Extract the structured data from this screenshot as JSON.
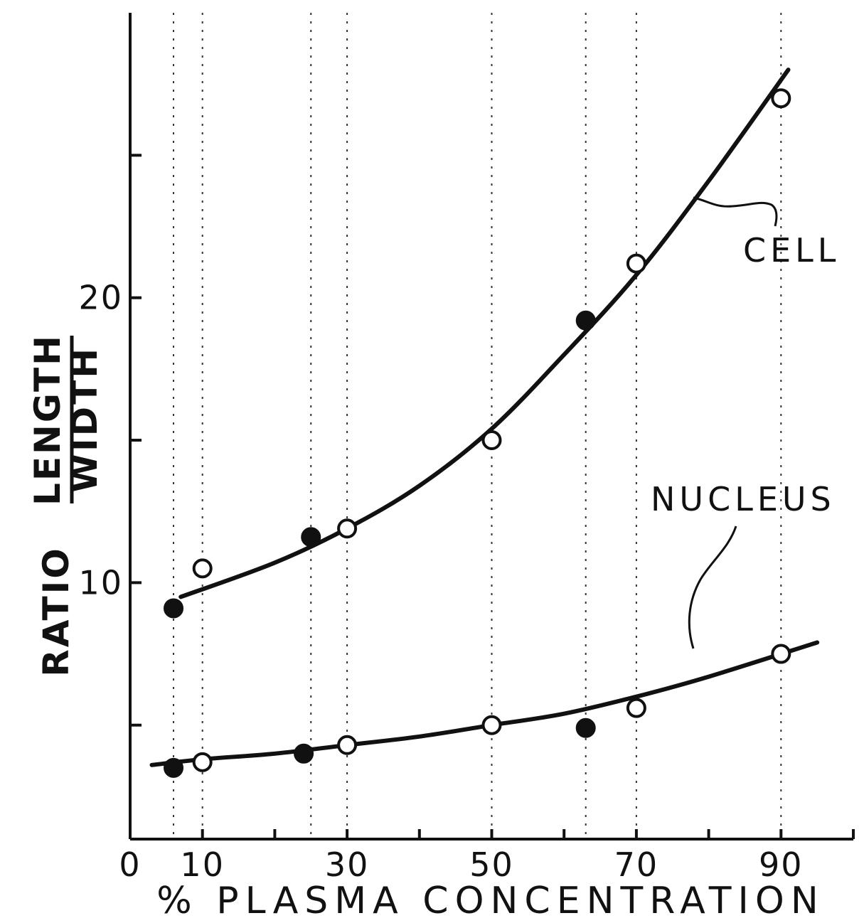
{
  "chart_data": {
    "type": "scatter",
    "title": "",
    "xlabel": "% PLASMA CONCENTRATION",
    "ylabel": {
      "prefix": "RATIO",
      "numerator": "LENGTH",
      "denominator": "WIDTH"
    },
    "xlim": [
      0,
      100
    ],
    "ylim": [
      1,
      30
    ],
    "x_ticks": [
      0,
      10,
      30,
      50,
      70,
      90
    ],
    "x_minor_ticks": [
      20,
      40,
      60,
      80,
      100
    ],
    "y_ticks": [
      10,
      20
    ],
    "y_minor_ticks": [
      5,
      15,
      25
    ],
    "grid": false,
    "reference_lines_x": [
      6,
      10,
      25,
      30,
      50,
      63,
      70,
      90
    ],
    "legend": "none",
    "series": [
      {
        "name": "CELL",
        "points": [
          {
            "x": 6,
            "y": 9.1,
            "marker": "filled"
          },
          {
            "x": 10,
            "y": 10.5,
            "marker": "open"
          },
          {
            "x": 25,
            "y": 11.6,
            "marker": "filled"
          },
          {
            "x": 30,
            "y": 11.9,
            "marker": "open"
          },
          {
            "x": 50,
            "y": 15.0,
            "marker": "open"
          },
          {
            "x": 63,
            "y": 19.2,
            "marker": "filled"
          },
          {
            "x": 70,
            "y": 21.2,
            "marker": "open"
          },
          {
            "x": 90,
            "y": 27.0,
            "marker": "open"
          }
        ],
        "curve": [
          [
            7,
            9.5
          ],
          [
            20,
            10.7
          ],
          [
            30,
            11.9
          ],
          [
            40,
            13.4
          ],
          [
            50,
            15.4
          ],
          [
            60,
            18.0
          ],
          [
            70,
            20.8
          ],
          [
            80,
            24.1
          ],
          [
            91,
            28.0
          ]
        ]
      },
      {
        "name": "NUCLEUS",
        "points": [
          {
            "x": 6,
            "y": 3.5,
            "marker": "filled"
          },
          {
            "x": 10,
            "y": 3.7,
            "marker": "open"
          },
          {
            "x": 24,
            "y": 4.0,
            "marker": "filled"
          },
          {
            "x": 30,
            "y": 4.3,
            "marker": "open"
          },
          {
            "x": 50,
            "y": 5.0,
            "marker": "open"
          },
          {
            "x": 63,
            "y": 4.9,
            "marker": "filled"
          },
          {
            "x": 70,
            "y": 5.6,
            "marker": "open"
          },
          {
            "x": 90,
            "y": 7.5,
            "marker": "open"
          }
        ],
        "curve": [
          [
            3,
            3.6
          ],
          [
            10,
            3.8
          ],
          [
            20,
            4.0
          ],
          [
            30,
            4.3
          ],
          [
            40,
            4.6
          ],
          [
            50,
            5.0
          ],
          [
            60,
            5.4
          ],
          [
            70,
            6.0
          ],
          [
            80,
            6.7
          ],
          [
            95,
            7.9
          ]
        ]
      }
    ]
  }
}
